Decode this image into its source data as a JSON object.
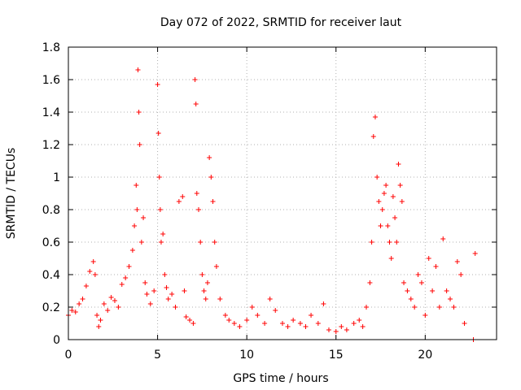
{
  "chart_data": {
    "type": "scatter",
    "title": "Day 072 of 2022, SRMTID for receiver laut",
    "xlabel": "GPS time / hours",
    "ylabel": "SRMTID / TECUs",
    "xlim": [
      0,
      24
    ],
    "ylim": [
      0,
      1.8
    ],
    "xticks": [
      0,
      5,
      10,
      15,
      20
    ],
    "xtick_labels": [
      "0",
      "5",
      "10",
      "15",
      "20"
    ],
    "yticks": [
      0,
      0.2,
      0.4,
      0.6,
      0.8,
      1,
      1.2,
      1.4,
      1.6,
      1.8
    ],
    "ytick_labels": [
      "0",
      "0.2",
      "0.4",
      "0.6",
      "0.8",
      "1",
      "1.2",
      "1.4",
      "1.6",
      "1.8"
    ],
    "grid": true,
    "marker_color": "#ff0000",
    "marker": "plus",
    "series": [
      {
        "name": "SRMTID",
        "x": [
          0.0,
          0.2,
          0.4,
          0.6,
          0.8,
          1.0,
          1.2,
          1.4,
          1.5,
          1.6,
          1.7,
          1.8,
          2.0,
          2.2,
          2.4,
          2.6,
          2.8,
          3.0,
          3.2,
          3.4,
          3.6,
          3.7,
          3.8,
          3.85,
          3.9,
          3.95,
          4.0,
          4.1,
          4.2,
          4.3,
          4.4,
          4.6,
          4.8,
          5.0,
          5.05,
          5.1,
          5.15,
          5.2,
          5.3,
          5.4,
          5.5,
          5.6,
          5.8,
          6.0,
          6.2,
          6.4,
          6.5,
          6.6,
          6.8,
          7.0,
          7.1,
          7.15,
          7.2,
          7.3,
          7.4,
          7.5,
          7.6,
          7.7,
          7.8,
          7.9,
          8.0,
          8.1,
          8.2,
          8.3,
          8.5,
          8.8,
          9.0,
          9.3,
          9.6,
          10.0,
          10.3,
          10.6,
          11.0,
          11.3,
          11.6,
          12.0,
          12.3,
          12.6,
          13.0,
          13.3,
          13.6,
          14.0,
          14.3,
          14.6,
          15.0,
          15.3,
          15.6,
          16.0,
          16.3,
          16.5,
          16.7,
          16.9,
          17.0,
          17.1,
          17.2,
          17.3,
          17.4,
          17.5,
          17.6,
          17.7,
          17.8,
          17.9,
          18.0,
          18.1,
          18.2,
          18.3,
          18.4,
          18.5,
          18.6,
          18.7,
          18.8,
          19.0,
          19.2,
          19.4,
          19.6,
          19.8,
          20.0,
          20.2,
          20.4,
          20.6,
          20.8,
          21.0,
          21.2,
          21.4,
          21.6,
          21.8,
          22.0,
          22.2,
          22.7,
          22.8
        ],
        "y": [
          0.15,
          0.18,
          0.17,
          0.22,
          0.25,
          0.33,
          0.42,
          0.48,
          0.4,
          0.15,
          0.08,
          0.12,
          0.22,
          0.18,
          0.26,
          0.24,
          0.2,
          0.34,
          0.38,
          0.45,
          0.55,
          0.7,
          0.95,
          0.8,
          1.66,
          1.4,
          1.2,
          0.6,
          0.75,
          0.35,
          0.28,
          0.22,
          0.3,
          1.57,
          1.27,
          1.0,
          0.8,
          0.6,
          0.65,
          0.4,
          0.32,
          0.25,
          0.28,
          0.2,
          0.85,
          0.88,
          0.3,
          0.14,
          0.12,
          0.1,
          1.6,
          1.45,
          0.9,
          0.8,
          0.6,
          0.4,
          0.3,
          0.25,
          0.35,
          1.12,
          1.0,
          0.85,
          0.6,
          0.45,
          0.25,
          0.15,
          0.12,
          0.1,
          0.08,
          0.12,
          0.2,
          0.15,
          0.1,
          0.25,
          0.18,
          0.1,
          0.08,
          0.12,
          0.1,
          0.08,
          0.15,
          0.1,
          0.22,
          0.06,
          0.05,
          0.08,
          0.06,
          0.1,
          0.12,
          0.08,
          0.2,
          0.35,
          0.6,
          1.25,
          1.37,
          1.0,
          0.85,
          0.7,
          0.8,
          0.9,
          0.95,
          0.7,
          0.6,
          0.5,
          0.88,
          0.75,
          0.6,
          1.08,
          0.95,
          0.85,
          0.35,
          0.3,
          0.25,
          0.2,
          0.4,
          0.35,
          0.15,
          0.5,
          0.3,
          0.45,
          0.2,
          0.62,
          0.3,
          0.25,
          0.2,
          0.48,
          0.4,
          0.1,
          0.0,
          0.53
        ]
      }
    ]
  }
}
